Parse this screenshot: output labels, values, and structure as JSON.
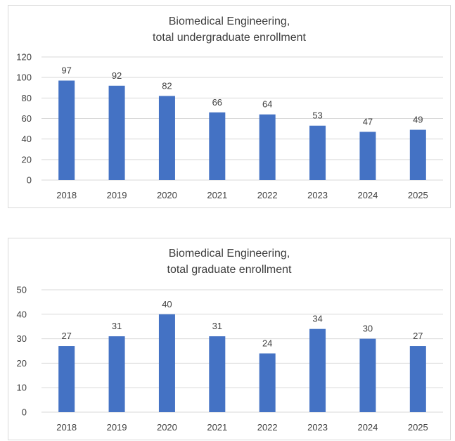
{
  "chart_data": [
    {
      "type": "bar",
      "title": "Biomedical Engineering, total undergraduate enrollment",
      "title_lines": [
        "Biomedical Engineering,",
        "total undergraduate enrollment"
      ],
      "categories": [
        "2018",
        "2019",
        "2020",
        "2021",
        "2022",
        "2023",
        "2024",
        "2025"
      ],
      "values": [
        97,
        92,
        82,
        66,
        64,
        53,
        47,
        49
      ],
      "ylim": [
        0,
        120
      ],
      "yticks": [
        0,
        20,
        40,
        60,
        80,
        100,
        120
      ],
      "xlabel": "",
      "ylabel": "",
      "grid": true,
      "data_labels": true,
      "bar_color": "#4472C4"
    },
    {
      "type": "bar",
      "title": "Biomedical Engineering, total graduate enrollment",
      "title_lines": [
        "Biomedical Engineering,",
        "total graduate enrollment"
      ],
      "categories": [
        "2018",
        "2019",
        "2020",
        "2021",
        "2022",
        "2023",
        "2024",
        "2025"
      ],
      "values": [
        27,
        31,
        40,
        31,
        24,
        34,
        30,
        27
      ],
      "ylim": [
        0,
        50
      ],
      "yticks": [
        0,
        10,
        20,
        30,
        40,
        50
      ],
      "xlabel": "",
      "ylabel": "",
      "grid": true,
      "data_labels": true,
      "bar_color": "#4472C4"
    }
  ]
}
